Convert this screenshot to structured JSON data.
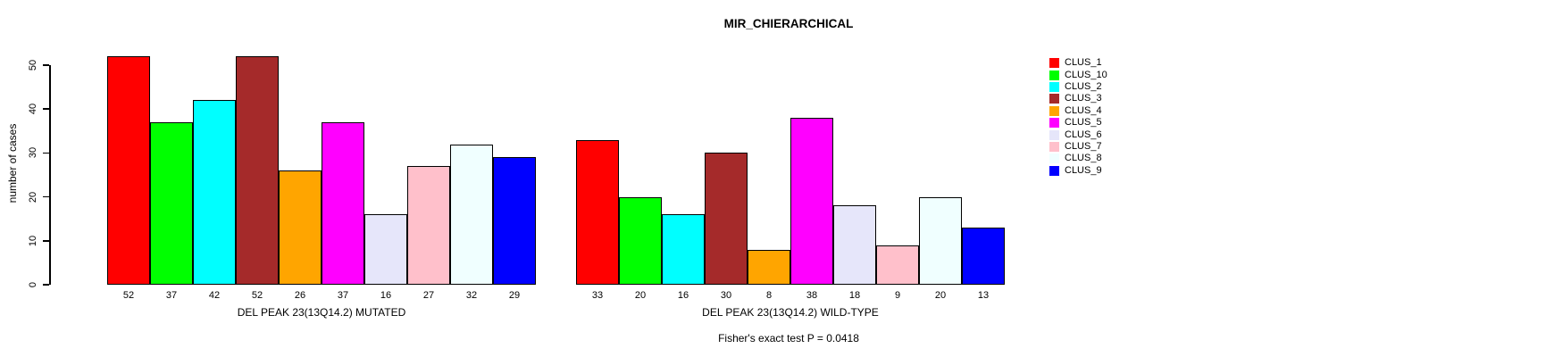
{
  "chart_data": {
    "type": "bar",
    "title": "MIR_CHIERARCHICAL",
    "ylabel": "number of cases",
    "xlabel": "",
    "ylim": [
      0,
      50
    ],
    "yticks": [
      0,
      10,
      20,
      30,
      40,
      50
    ],
    "grid": false,
    "legend_position": "right-inset",
    "categories": [
      "CLUS_1",
      "CLUS_10",
      "CLUS_2",
      "CLUS_3",
      "CLUS_4",
      "CLUS_5",
      "CLUS_6",
      "CLUS_7",
      "CLUS_8",
      "CLUS_9"
    ],
    "legend": [
      {
        "label": "CLUS_1",
        "color": "#FF0000"
      },
      {
        "label": "CLUS_10",
        "color": "#00FF00"
      },
      {
        "label": "CLUS_2",
        "color": "#00FFFF"
      },
      {
        "label": "CLUS_3",
        "color": "#A52A2A"
      },
      {
        "label": "CLUS_4",
        "color": "#FFA500"
      },
      {
        "label": "CLUS_5",
        "color": "#FF00FF"
      },
      {
        "label": "CLUS_6",
        "color": "#E6E6FA"
      },
      {
        "label": "CLUS_7",
        "color": "#FFC0CB"
      },
      {
        "label": "CLUS_8",
        "color": "#F0FFFF"
      },
      {
        "label": "CLUS_9",
        "color": "#0000FF"
      }
    ],
    "groups": [
      {
        "label": "DEL PEAK 23(13Q14.2) MUTATED",
        "values": [
          52,
          37,
          42,
          52,
          26,
          37,
          16,
          27,
          32,
          29
        ]
      },
      {
        "label": "DEL PEAK 23(13Q14.2) WILD-TYPE",
        "values": [
          33,
          20,
          16,
          30,
          8,
          38,
          18,
          9,
          20,
          13
        ]
      }
    ],
    "footnote": "Fisher's exact test P = 0.0418"
  }
}
